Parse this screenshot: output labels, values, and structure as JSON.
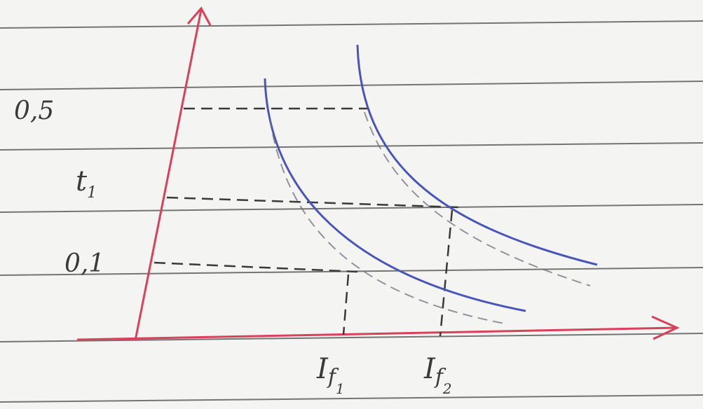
{
  "y_labels": [
    {
      "text": "0,5"
    },
    {
      "text": "t",
      "sub": "1"
    },
    {
      "text": "0,1"
    }
  ],
  "x_labels": [
    {
      "text": "I",
      "sub": "f",
      "sub2": "1"
    },
    {
      "text": "I",
      "sub": "f",
      "sub2": "2"
    }
  ]
}
